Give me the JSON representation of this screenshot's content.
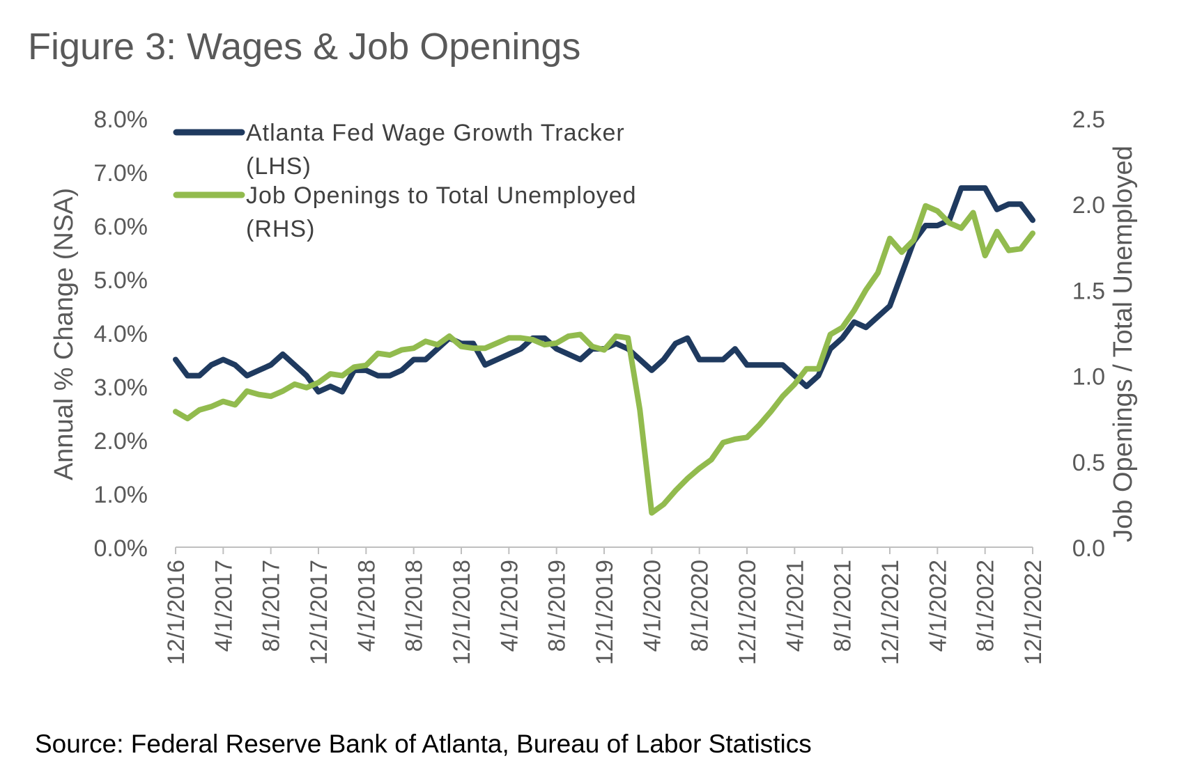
{
  "title": "Figure 3: Wages & Job Openings",
  "source": "Source: Federal Reserve Bank of Atlanta, Bureau of Labor Statistics",
  "chart_data": {
    "type": "line",
    "title": "Figure 3: Wages & Job Openings",
    "ylabel_left": "Annual % Change (NSA)",
    "ylabel_right": "Job Openings / Total Unemployed",
    "ylim_left": [
      0,
      8
    ],
    "ylim_right": [
      0,
      2.5
    ],
    "yticks_left": [
      "0.0%",
      "1.0%",
      "2.0%",
      "3.0%",
      "4.0%",
      "5.0%",
      "6.0%",
      "7.0%",
      "8.0%"
    ],
    "yticks_right": [
      "0.0",
      "0.5",
      "1.0",
      "1.5",
      "2.0",
      "2.5"
    ],
    "xticks": [
      "12/1/2016",
      "4/1/2017",
      "8/1/2017",
      "12/1/2017",
      "4/1/2018",
      "8/1/2018",
      "12/1/2018",
      "4/1/2019",
      "8/1/2019",
      "12/1/2019",
      "4/1/2020",
      "8/1/2020",
      "12/1/2020",
      "4/1/2021",
      "8/1/2021",
      "12/1/2021",
      "4/1/2022",
      "8/1/2022",
      "12/1/2022"
    ],
    "x": [
      "2016-12",
      "2017-01",
      "2017-02",
      "2017-03",
      "2017-04",
      "2017-05",
      "2017-06",
      "2017-07",
      "2017-08",
      "2017-09",
      "2017-10",
      "2017-11",
      "2017-12",
      "2018-01",
      "2018-02",
      "2018-03",
      "2018-04",
      "2018-05",
      "2018-06",
      "2018-07",
      "2018-08",
      "2018-09",
      "2018-10",
      "2018-11",
      "2018-12",
      "2019-01",
      "2019-02",
      "2019-03",
      "2019-04",
      "2019-05",
      "2019-06",
      "2019-07",
      "2019-08",
      "2019-09",
      "2019-10",
      "2019-11",
      "2019-12",
      "2020-01",
      "2020-02",
      "2020-03",
      "2020-04",
      "2020-05",
      "2020-06",
      "2020-07",
      "2020-08",
      "2020-09",
      "2020-10",
      "2020-11",
      "2020-12",
      "2021-01",
      "2021-02",
      "2021-03",
      "2021-04",
      "2021-05",
      "2021-06",
      "2021-07",
      "2021-08",
      "2021-09",
      "2021-10",
      "2021-11",
      "2021-12",
      "2022-01",
      "2022-02",
      "2022-03",
      "2022-04",
      "2022-05",
      "2022-06",
      "2022-07",
      "2022-08",
      "2022-09",
      "2022-10",
      "2022-11",
      "2022-12"
    ],
    "legend_position": "top-left",
    "grid": false,
    "series": [
      {
        "name": "Atlanta Fed Wage Growth Tracker",
        "name_suffix": "(LHS)",
        "axis": "left",
        "color": "#1f3a5f",
        "values": [
          3.5,
          3.2,
          3.2,
          3.4,
          3.5,
          3.4,
          3.2,
          3.3,
          3.4,
          3.6,
          3.4,
          3.2,
          2.9,
          3.0,
          2.9,
          3.3,
          3.3,
          3.2,
          3.2,
          3.3,
          3.5,
          3.5,
          3.7,
          3.9,
          3.8,
          3.8,
          3.4,
          3.5,
          3.6,
          3.7,
          3.9,
          3.9,
          3.7,
          3.6,
          3.5,
          3.7,
          3.7,
          3.8,
          3.7,
          3.5,
          3.3,
          3.5,
          3.8,
          3.9,
          3.5,
          3.5,
          3.5,
          3.7,
          3.4,
          3.4,
          3.4,
          3.4,
          3.2,
          3.0,
          3.2,
          3.7,
          3.9,
          4.2,
          4.1,
          4.3,
          4.5,
          5.1,
          5.7,
          6.0,
          6.0,
          6.1,
          6.7,
          6.7,
          6.7,
          6.3,
          6.4,
          6.4,
          6.1
        ]
      },
      {
        "name": "Job Openings to Total Unemployed",
        "name_suffix": "(RHS)",
        "axis": "right",
        "color": "#92bb4e",
        "values": [
          0.79,
          0.75,
          0.8,
          0.82,
          0.85,
          0.83,
          0.91,
          0.89,
          0.88,
          0.91,
          0.95,
          0.93,
          0.96,
          1.01,
          1.0,
          1.05,
          1.06,
          1.13,
          1.12,
          1.15,
          1.16,
          1.2,
          1.18,
          1.23,
          1.17,
          1.16,
          1.16,
          1.19,
          1.22,
          1.22,
          1.21,
          1.18,
          1.19,
          1.23,
          1.24,
          1.17,
          1.15,
          1.23,
          1.22,
          0.8,
          0.2,
          0.25,
          0.33,
          0.4,
          0.46,
          0.51,
          0.61,
          0.63,
          0.64,
          0.71,
          0.79,
          0.88,
          0.95,
          1.04,
          1.04,
          1.24,
          1.28,
          1.38,
          1.5,
          1.6,
          1.8,
          1.72,
          1.79,
          1.99,
          1.96,
          1.89,
          1.86,
          1.95,
          1.7,
          1.84,
          1.73,
          1.74,
          1.83
        ]
      }
    ]
  }
}
